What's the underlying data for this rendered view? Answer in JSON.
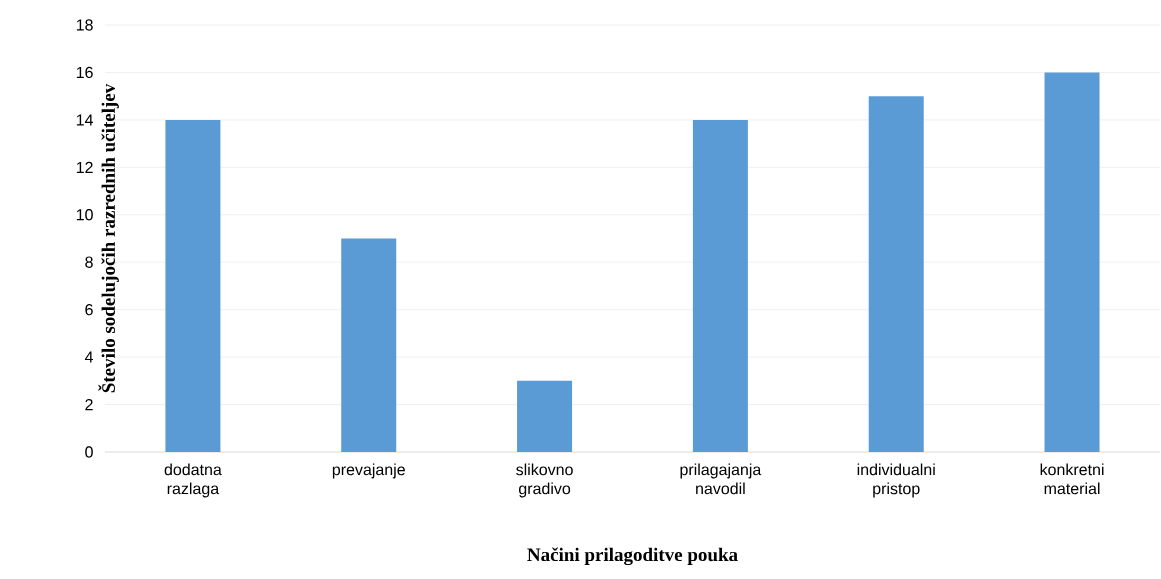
{
  "chart_data": {
    "type": "bar",
    "xlabel": "Načini prilagoditve pouka",
    "ylabel": "Število sodelujočih razrednih učiteljev",
    "categories": [
      "dodatna razlaga",
      "prevajanje",
      "slikovno gradivo",
      "prilagajanja navodil",
      "individualni pristop",
      "konkretni material"
    ],
    "values": [
      14,
      9,
      3,
      14,
      15,
      16
    ],
    "color": "#5b9bd5",
    "ylim": [
      0,
      18
    ],
    "yticks": [
      0,
      2,
      4,
      6,
      8,
      10,
      12,
      14,
      16,
      18
    ],
    "grid": "y"
  }
}
